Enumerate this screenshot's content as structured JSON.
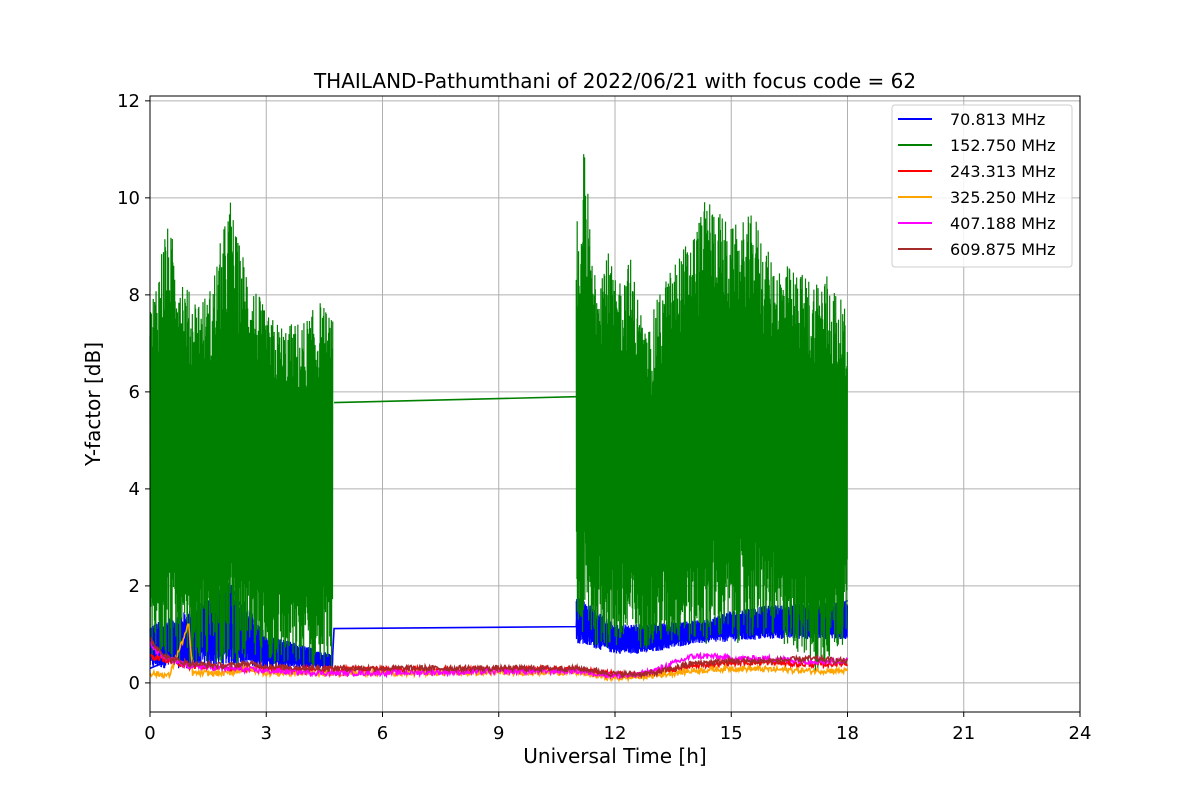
{
  "chart_data": {
    "type": "line",
    "title": "THAILAND-Pathumthani of 2022/06/21 with focus code = 62",
    "xlabel": "Universal Time [h]",
    "ylabel": "Y-factor [dB]",
    "xlim": [
      0,
      24
    ],
    "ylim": [
      -0.6,
      12.1
    ],
    "xticks": [
      0,
      3,
      6,
      9,
      12,
      15,
      18,
      21,
      24
    ],
    "yticks": [
      0,
      2,
      4,
      6,
      8,
      10,
      12
    ],
    "grid": true,
    "legend_position": "top-right",
    "series": [
      {
        "name": "70.813 MHz",
        "color": "#0000ff",
        "points": [
          [
            0.0,
            0.3
          ],
          [
            0.3,
            0.4
          ],
          [
            1.0,
            1.3
          ],
          [
            2.1,
            2.0
          ],
          [
            3.0,
            0.5
          ],
          [
            4.7,
            0.35
          ],
          [
            4.75,
            1.12
          ],
          [
            11.0,
            1.16
          ],
          [
            11.05,
            1.7
          ],
          [
            12.0,
            0.9
          ],
          [
            12.8,
            0.7
          ],
          [
            14.0,
            1.0
          ],
          [
            15.0,
            1.1
          ],
          [
            16.0,
            1.3
          ],
          [
            17.0,
            1.2
          ],
          [
            18.0,
            1.7
          ]
        ],
        "upper": [
          [
            0.0,
            1.2
          ],
          [
            1.0,
            1.5
          ],
          [
            2.1,
            2.1
          ],
          [
            3.0,
            1.0
          ],
          [
            4.7,
            0.6
          ],
          [
            11.05,
            1.8
          ],
          [
            12.0,
            1.2
          ],
          [
            14.3,
            1.3
          ],
          [
            15.0,
            1.5
          ],
          [
            16.0,
            1.6
          ],
          [
            18.0,
            1.7
          ]
        ],
        "lower": [
          [
            0.0,
            0.3
          ],
          [
            1.0,
            0.3
          ],
          [
            2.0,
            0.35
          ],
          [
            3.0,
            0.3
          ],
          [
            4.7,
            0.3
          ],
          [
            11.05,
            0.8
          ],
          [
            12.0,
            0.6
          ],
          [
            12.8,
            0.6
          ],
          [
            14.0,
            0.8
          ],
          [
            15.0,
            0.85
          ],
          [
            16.0,
            0.9
          ],
          [
            18.0,
            0.9
          ]
        ]
      },
      {
        "name": "152.750 MHz",
        "color": "#008000",
        "points": [
          [
            4.75,
            5.78
          ],
          [
            11.0,
            5.9
          ]
        ],
        "upper": [
          [
            0.0,
            7.8
          ],
          [
            0.2,
            8.6
          ],
          [
            0.4,
            9.5
          ],
          [
            0.7,
            9.0
          ],
          [
            1.0,
            8.1
          ],
          [
            1.5,
            8.0
          ],
          [
            2.1,
            10.1
          ],
          [
            2.2,
            9.3
          ],
          [
            2.6,
            8.5
          ],
          [
            3.0,
            7.6
          ],
          [
            3.5,
            7.4
          ],
          [
            4.0,
            7.5
          ],
          [
            4.4,
            7.9
          ],
          [
            4.7,
            7.5
          ],
          [
            11.0,
            10.3
          ],
          [
            11.1,
            8.0
          ],
          [
            11.2,
            11.5
          ],
          [
            11.4,
            8.8
          ],
          [
            11.8,
            9.0
          ],
          [
            12.0,
            8.3
          ],
          [
            12.4,
            8.8
          ],
          [
            12.8,
            7.2
          ],
          [
            13.2,
            8.2
          ],
          [
            13.6,
            8.8
          ],
          [
            14.0,
            9.3
          ],
          [
            14.4,
            10.1
          ],
          [
            15.0,
            9.4
          ],
          [
            15.6,
            9.7
          ],
          [
            16.0,
            8.8
          ],
          [
            16.5,
            8.6
          ],
          [
            17.0,
            8.4
          ],
          [
            17.5,
            8.5
          ],
          [
            18.0,
            7.6
          ]
        ],
        "lower": [
          [
            0.0,
            0.2
          ],
          [
            0.3,
            0.5
          ],
          [
            1.0,
            0.3
          ],
          [
            2.0,
            0.4
          ],
          [
            3.0,
            0.3
          ],
          [
            4.0,
            0.25
          ],
          [
            4.7,
            0.3
          ],
          [
            11.05,
            0.9
          ],
          [
            12.0,
            0.6
          ],
          [
            12.8,
            0.7
          ],
          [
            14.0,
            0.8
          ],
          [
            15.0,
            0.8
          ],
          [
            16.0,
            0.9
          ],
          [
            17.0,
            0.5
          ],
          [
            17.1,
            0.0
          ],
          [
            18.0,
            0.9
          ]
        ]
      },
      {
        "name": "243.313 MHz",
        "color": "#ff0000",
        "points": [
          [
            0.0,
            0.55
          ],
          [
            0.3,
            0.5
          ],
          [
            1.0,
            0.35
          ],
          [
            2.0,
            0.3
          ],
          [
            3.0,
            0.28
          ],
          [
            4.7,
            0.28
          ],
          [
            11.0,
            0.28
          ],
          [
            11.5,
            0.22
          ],
          [
            12.0,
            0.18
          ],
          [
            12.5,
            0.16
          ],
          [
            13.0,
            0.2
          ],
          [
            14.0,
            0.35
          ],
          [
            15.0,
            0.42
          ],
          [
            16.0,
            0.42
          ],
          [
            17.0,
            0.38
          ],
          [
            18.0,
            0.4
          ]
        ]
      },
      {
        "name": "325.250 MHz",
        "color": "#ffa500",
        "points": [
          [
            0.0,
            0.2
          ],
          [
            0.5,
            0.15
          ],
          [
            1.0,
            1.2
          ],
          [
            1.1,
            0.2
          ],
          [
            2.0,
            0.2
          ],
          [
            2.5,
            0.3
          ],
          [
            3.0,
            0.2
          ],
          [
            4.7,
            0.2
          ],
          [
            11.0,
            0.22
          ],
          [
            11.5,
            0.15
          ],
          [
            12.0,
            0.1
          ],
          [
            12.5,
            0.12
          ],
          [
            13.0,
            0.15
          ],
          [
            14.0,
            0.25
          ],
          [
            15.0,
            0.3
          ],
          [
            16.0,
            0.28
          ],
          [
            17.0,
            0.25
          ],
          [
            18.0,
            0.25
          ]
        ]
      },
      {
        "name": "407.188 MHz",
        "color": "#ff00ff",
        "points": [
          [
            0.0,
            0.8
          ],
          [
            0.3,
            0.55
          ],
          [
            1.0,
            0.35
          ],
          [
            2.0,
            0.3
          ],
          [
            3.0,
            0.25
          ],
          [
            4.7,
            0.2
          ],
          [
            11.0,
            0.25
          ],
          [
            11.5,
            0.2
          ],
          [
            12.0,
            0.15
          ],
          [
            12.5,
            0.15
          ],
          [
            13.0,
            0.25
          ],
          [
            13.5,
            0.4
          ],
          [
            14.0,
            0.55
          ],
          [
            14.5,
            0.55
          ],
          [
            15.0,
            0.5
          ],
          [
            16.0,
            0.5
          ],
          [
            17.0,
            0.45
          ],
          [
            18.0,
            0.45
          ]
        ]
      },
      {
        "name": "609.875 MHz",
        "color": "#a52a2a",
        "points": [
          [
            0.0,
            0.9
          ],
          [
            0.2,
            0.7
          ],
          [
            0.5,
            0.5
          ],
          [
            1.0,
            0.4
          ],
          [
            2.0,
            0.35
          ],
          [
            2.5,
            0.4
          ],
          [
            3.0,
            0.35
          ],
          [
            3.5,
            0.32
          ],
          [
            4.7,
            0.3
          ],
          [
            11.0,
            0.3
          ],
          [
            11.5,
            0.25
          ],
          [
            12.0,
            0.18
          ],
          [
            12.5,
            0.18
          ],
          [
            13.0,
            0.2
          ],
          [
            13.5,
            0.3
          ],
          [
            14.0,
            0.4
          ],
          [
            15.0,
            0.45
          ],
          [
            16.0,
            0.45
          ],
          [
            17.0,
            0.5
          ],
          [
            18.0,
            0.45
          ]
        ]
      }
    ]
  }
}
